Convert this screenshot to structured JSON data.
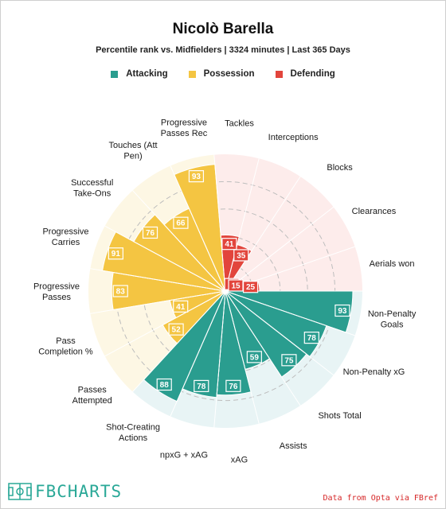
{
  "header": {
    "title": "Nicolò Barella",
    "subtitle": "Percentile rank vs. Midfielders | 3324 minutes | Last 365 Days"
  },
  "legend": [
    {
      "label": "Attacking",
      "color": "#2a9d8f"
    },
    {
      "label": "Possession",
      "color": "#f4c542"
    },
    {
      "label": "Defending",
      "color": "#e2453c"
    }
  ],
  "colors": {
    "attacking": "#2a9d8f",
    "possession": "#f4c542",
    "defending": "#e2453c",
    "attacking_bg": "#e8f4f5",
    "possession_bg": "#fdf7e4",
    "defending_bg": "#fdeceb"
  },
  "chart_data": {
    "type": "polar-bar",
    "title": "Nicolò Barella",
    "subtitle": "Percentile rank vs. Midfielders | 3324 minutes | Last 365 Days",
    "rlim": [
      0,
      100
    ],
    "grid": true,
    "legend_position": "top",
    "series": [
      {
        "name": "Attacking",
        "categories": [
          "Non-Penalty Goals",
          "Non-Penalty xG",
          "Shots Total",
          "Assists",
          "xAG",
          "npxG + xAG",
          "Shot-Creating Actions"
        ],
        "values": [
          93,
          78,
          75,
          59,
          76,
          78,
          88
        ]
      },
      {
        "name": "Possession",
        "categories": [
          "Passes Attempted",
          "Pass Completion %",
          "Progressive Passes",
          "Progressive Carries",
          "Successful Take-Ons",
          "Touches (Att Pen)",
          "Progressive Passes Rec"
        ],
        "values": [
          52,
          41,
          83,
          91,
          76,
          66,
          93
        ]
      },
      {
        "name": "Defending",
        "categories": [
          "Tackles",
          "Interceptions",
          "Blocks",
          "Clearances",
          "Aerials won"
        ],
        "values": [
          41,
          35,
          2,
          15,
          25
        ]
      }
    ],
    "slices": [
      {
        "label": "Non-Penalty Goals",
        "group": "attacking",
        "value": 93
      },
      {
        "label": "Non-Penalty xG",
        "group": "attacking",
        "value": 78
      },
      {
        "label": "Shots Total",
        "group": "attacking",
        "value": 75
      },
      {
        "label": "Assists",
        "group": "attacking",
        "value": 59
      },
      {
        "label": "xAG",
        "group": "attacking",
        "value": 76
      },
      {
        "label": "npxG + xAG",
        "group": "attacking",
        "value": 78
      },
      {
        "label": "Shot-Creating Actions",
        "group": "attacking",
        "value": 88
      },
      {
        "label": "Passes Attempted",
        "group": "possession",
        "value": 52
      },
      {
        "label": "Pass Completion %",
        "group": "possession",
        "value": 41
      },
      {
        "label": "Progressive Passes",
        "group": "possession",
        "value": 83
      },
      {
        "label": "Progressive Carries",
        "group": "possession",
        "value": 91
      },
      {
        "label": "Successful Take-Ons",
        "group": "possession",
        "value": 76
      },
      {
        "label": "Touches (Att Pen)",
        "group": "possession",
        "value": 66
      },
      {
        "label": "Progressive Passes Rec",
        "group": "possession",
        "value": 93
      },
      {
        "label": "Tackles",
        "group": "defending",
        "value": 41
      },
      {
        "label": "Interceptions",
        "group": "defending",
        "value": 35
      },
      {
        "label": "Blocks",
        "group": "defending",
        "value": 2
      },
      {
        "label": "Clearances",
        "group": "defending",
        "value": 15
      },
      {
        "label": "Aerials won",
        "group": "defending",
        "value": 25
      }
    ]
  },
  "footer": {
    "logo_text": "FBCHARTS",
    "credit": "Data from Opta via FBref"
  }
}
